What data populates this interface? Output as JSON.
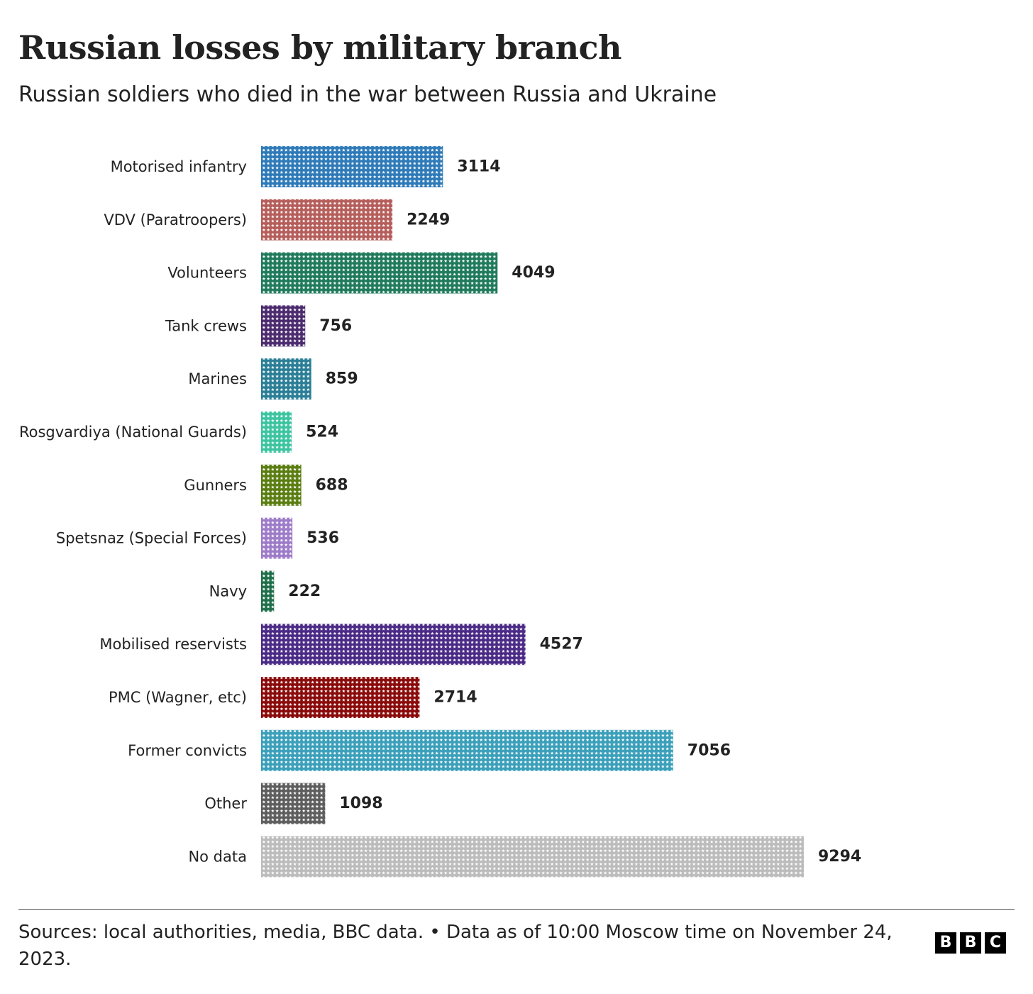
{
  "title": "Russian losses by military branch",
  "subtitle": "Russian soldiers who died in the war between Russia and Ukraine",
  "source": "Sources: local authorities, media, BBC data. • Data as of 10:00 Moscow time on November 24, 2023.",
  "logo": [
    "B",
    "B",
    "C"
  ],
  "chart_data": {
    "type": "bar",
    "orientation": "horizontal",
    "style": "pictogram (stars)",
    "categories": [
      "Motorised infantry",
      "VDV (Paratroopers)",
      "Volunteers",
      "Tank crews",
      "Marines",
      "Rosgvardiya (National Guards)",
      "Gunners",
      "Spetsnaz (Special Forces)",
      "Navy",
      "Mobilised reservists",
      "PMC (Wagner, etc)",
      "Former convicts",
      "Other",
      "No data"
    ],
    "values": [
      3114,
      2249,
      4049,
      756,
      859,
      524,
      688,
      536,
      222,
      4527,
      2714,
      7056,
      1098,
      9294
    ],
    "colors": [
      "#2e7ab8",
      "#b55d5a",
      "#1f7a5c",
      "#4b2a6e",
      "#2a7e96",
      "#3cc4a0",
      "#5a7d10",
      "#9d7bc8",
      "#1f6e4a",
      "#4a2a86",
      "#8a0a0a",
      "#3a9fba",
      "#5d5d5d",
      "#bcbcbc"
    ],
    "title": "",
    "xlabel": "",
    "ylabel": "",
    "xlim": [
      0,
      9294
    ],
    "grid": false,
    "legend": "none"
  }
}
